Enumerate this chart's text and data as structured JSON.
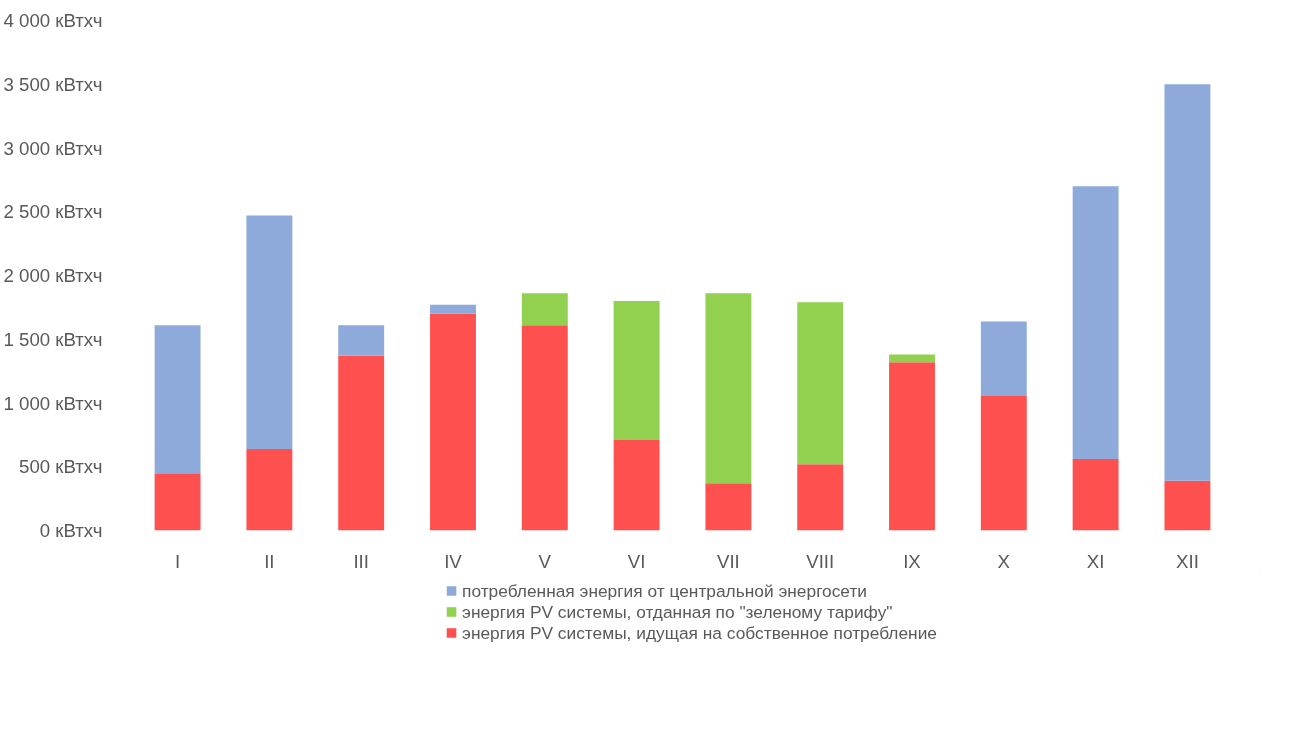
{
  "chart_data": {
    "type": "bar",
    "stacked": true,
    "categories": [
      "I",
      "II",
      "III",
      "IV",
      "V",
      "VI",
      "VII",
      "VIII",
      "IX",
      "X",
      "XI",
      "XII"
    ],
    "series": [
      {
        "name": "энергия PV системы, идущая на собственное потребление",
        "color": "#ff5050",
        "values": [
          450,
          640,
          1370,
          1700,
          1610,
          710,
          370,
          520,
          1320,
          1060,
          560,
          390
        ]
      },
      {
        "name": "энергия PV системы, отданная по \"зеленому тарифу\"",
        "color": "#92d050",
        "values": [
          0,
          0,
          0,
          0,
          250,
          1090,
          1490,
          1270,
          60,
          0,
          0,
          0
        ]
      },
      {
        "name": "потребленная энергия от центральной энергосети",
        "color": "#8eaadb",
        "values": [
          1160,
          1830,
          240,
          70,
          0,
          0,
          0,
          0,
          0,
          580,
          2140,
          3110
        ]
      }
    ],
    "ylim": [
      0,
      4000
    ],
    "yticks": [
      {
        "value": 0,
        "label": "0 кВтхч"
      },
      {
        "value": 500,
        "label": "500 кВтхч"
      },
      {
        "value": 1000,
        "label": "1 000 кВтхч"
      },
      {
        "value": 1500,
        "label": "1 500 кВтхч"
      },
      {
        "value": 2000,
        "label": "2 000 кВтхч"
      },
      {
        "value": 2500,
        "label": "2 500 кВтхч"
      },
      {
        "value": 3000,
        "label": "3 000 кВтхч"
      },
      {
        "value": 3500,
        "label": "3 500 кВтхч"
      },
      {
        "value": 4000,
        "label": "4 000 кВтхч"
      }
    ],
    "grid": false,
    "legend": "bottom"
  }
}
